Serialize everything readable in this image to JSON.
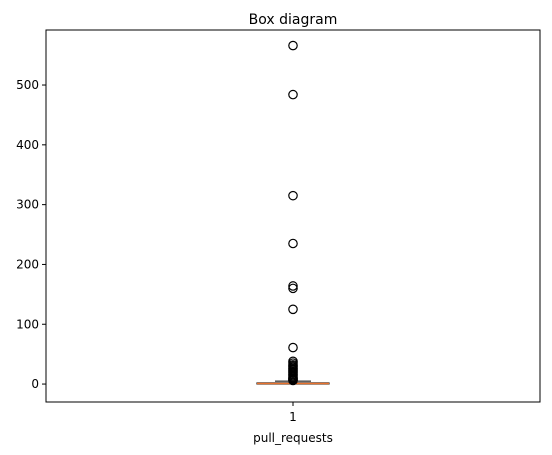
{
  "chart_data": {
    "type": "box",
    "title": "Box diagram",
    "xlabel": "pull_requests",
    "ylabel": "",
    "categories": [
      "1"
    ],
    "ylim": [
      -30,
      592
    ],
    "y_ticks": [
      0,
      100,
      200,
      300,
      400,
      500
    ],
    "grid": false,
    "series": [
      {
        "q1": 0,
        "median": 1,
        "q3": 2,
        "whisker_low": 0,
        "whisker_high": 5,
        "outliers": [
          566,
          484,
          315,
          235,
          164,
          160,
          125,
          61,
          38,
          35,
          32,
          30,
          28,
          26,
          24,
          22,
          20,
          18,
          16,
          14,
          12,
          10,
          9,
          8,
          7,
          6
        ]
      }
    ],
    "colors": {
      "median": "#e8722d",
      "box": "#000000",
      "outlier_edge": "#000000"
    }
  }
}
